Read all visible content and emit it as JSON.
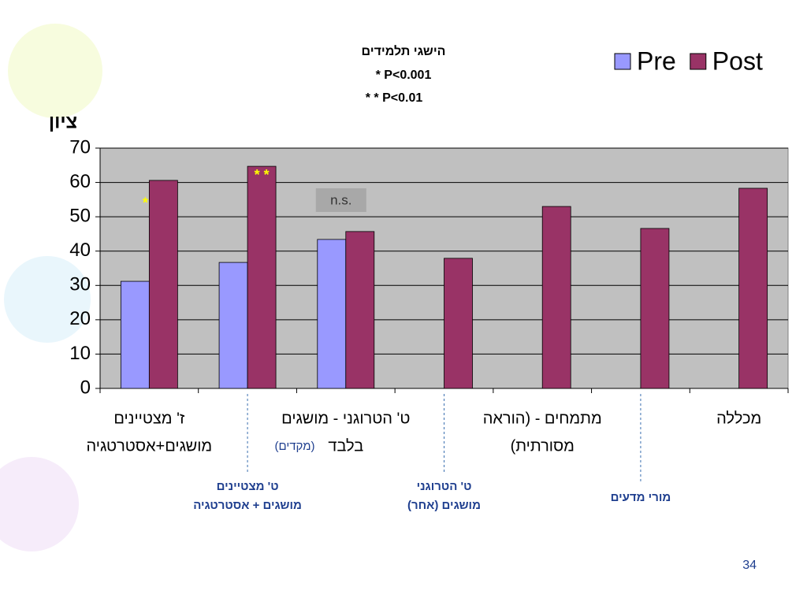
{
  "chart_data": {
    "type": "bar",
    "title": [
      "הישגי תלמידים",
      "*  P<0.001",
      "* *  P<0.01"
    ],
    "y_label": "ציון",
    "categories": [
      [
        "ז' מצטיינים",
        "מושגים+אסטרטגיה"
      ],
      [
        "ט' מצטיינים",
        "מושגים + אסטרטגיה"
      ],
      [
        "ט' הטרוגני - מושגים",
        "בלבד"
      ],
      [
        "ט' הטרוגני",
        "מושגים (אחר)"
      ],
      [
        "מתמחים - (הוראה",
        "מסורתית)"
      ],
      [
        "מורי מדעים"
      ],
      [
        "מכללה"
      ]
    ],
    "category_note": "(מקדים)",
    "series": [
      {
        "name": "Pre",
        "color": "#9999ff",
        "values": [
          31.2,
          36.7,
          43.4,
          null,
          null,
          null,
          null
        ]
      },
      {
        "name": "Post",
        "color": "#993366",
        "values": [
          60.6,
          64.7,
          45.7,
          37.9,
          53,
          46.6,
          58.3
        ]
      }
    ],
    "significance": [
      "*",
      "* *",
      "n.s.",
      null,
      null,
      null,
      null
    ],
    "ylim": [
      0,
      70
    ],
    "yticks": [
      0,
      10,
      20,
      30,
      40,
      50,
      60,
      70
    ],
    "grid": true,
    "legend": "top-right",
    "page_number": "34"
  }
}
